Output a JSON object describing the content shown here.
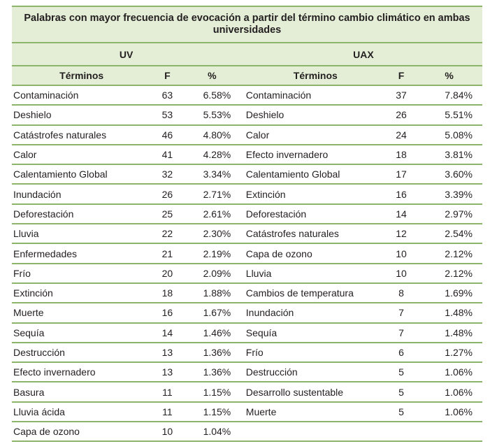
{
  "title": "Palabras con mayor frecuencia de evocación a partir del término cambio climático en ambas universidades",
  "groups": [
    "UV",
    "UAX"
  ],
  "columns": [
    "Términos",
    "F",
    "%"
  ],
  "uv": [
    [
      "Contaminación",
      "63",
      "6.58%"
    ],
    [
      "Deshielo",
      "53",
      "5.53%"
    ],
    [
      "Catástrofes naturales",
      "46",
      "4.80%"
    ],
    [
      "Calor",
      "41",
      "4.28%"
    ],
    [
      "Calentamiento Global",
      "32",
      "3.34%"
    ],
    [
      "Inundación",
      "26",
      "2.71%"
    ],
    [
      "Deforestación",
      "25",
      "2.61%"
    ],
    [
      "Lluvia",
      "22",
      "2.30%"
    ],
    [
      "Enfermedades",
      "21",
      "2.19%"
    ],
    [
      "Frío",
      "20",
      "2.09%"
    ],
    [
      "Extinción",
      "18",
      "1.88%"
    ],
    [
      "Muerte",
      "16",
      "1.67%"
    ],
    [
      "Sequía",
      "14",
      "1.46%"
    ],
    [
      "Destrucción",
      "13",
      "1.36%"
    ],
    [
      "Efecto invernadero",
      "13",
      "1.36%"
    ],
    [
      "Basura",
      "11",
      "1.15%"
    ],
    [
      "Lluvia ácida",
      "11",
      "1.15%"
    ],
    [
      "Capa de ozono",
      "10",
      "1.04%"
    ]
  ],
  "uax": [
    [
      "Contaminación",
      "37",
      "7.84%"
    ],
    [
      "Deshielo",
      "26",
      "5.51%"
    ],
    [
      "Calor",
      "24",
      "5.08%"
    ],
    [
      "Efecto invernadero",
      "18",
      "3.81%"
    ],
    [
      "Calentamiento Global",
      "17",
      "3.60%"
    ],
    [
      "Extinción",
      "16",
      "3.39%"
    ],
    [
      "Deforestación",
      "14",
      "2.97%"
    ],
    [
      "Catástrofes naturales",
      "12",
      "2.54%"
    ],
    [
      "Capa de ozono",
      "10",
      "2.12%"
    ],
    [
      "Lluvia",
      "10",
      "2.12%"
    ],
    [
      "Cambios de temperatura",
      "8",
      "1.69%"
    ],
    [
      "Inundación",
      "7",
      "1.48%"
    ],
    [
      "Sequía",
      "7",
      "1.48%"
    ],
    [
      "Frío",
      "6",
      "1.27%"
    ],
    [
      "Destrucción",
      "5",
      "1.06%"
    ],
    [
      "Desarrollo sustentable",
      "5",
      "1.06%"
    ],
    [
      "Muerte",
      "5",
      "1.06%"
    ]
  ],
  "colors": {
    "header_bg": "#e4eed6",
    "rule": "#8db56a"
  }
}
